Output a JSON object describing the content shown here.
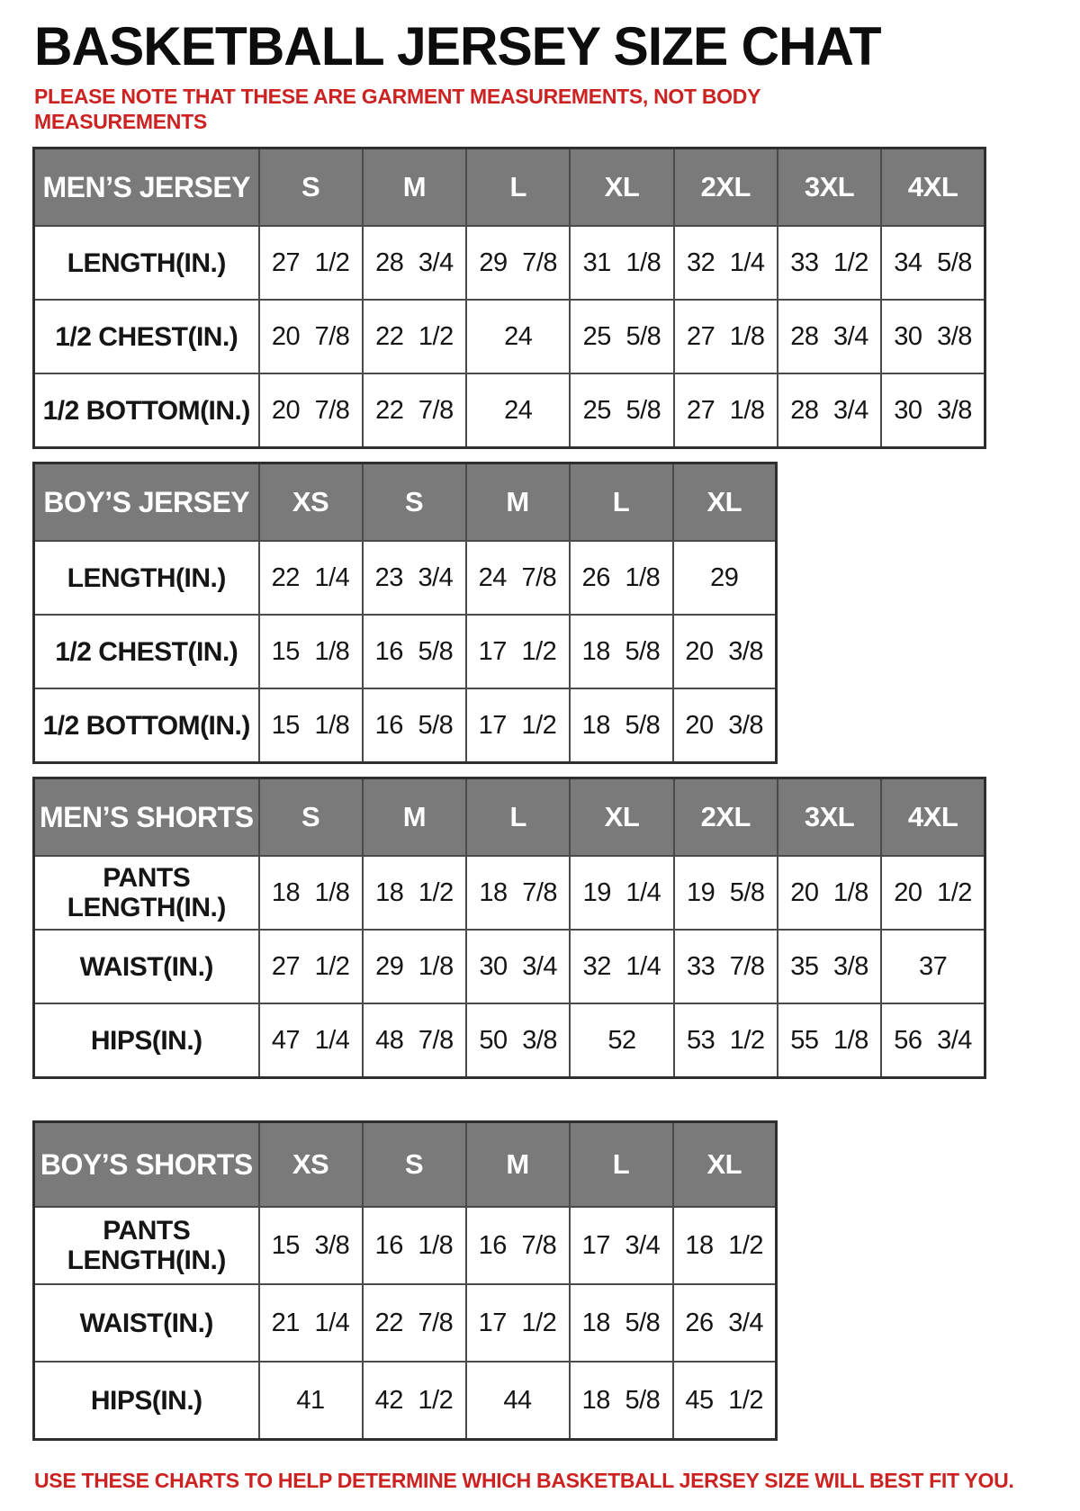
{
  "page": {
    "title": "BASKETBALL JERSEY SIZE CHAT",
    "note_top": "PLEASE NOTE THAT THESE ARE GARMENT MEASUREMENTS, NOT BODY MEASUREMENTS",
    "note_bottom": "USE THESE CHARTS TO HELP DETERMINE WHICH BASKETBALL JERSEY SIZE WILL BEST FIT YOU."
  },
  "colors": {
    "header_bg": "#7a7a7a",
    "header_text": "#ffffff",
    "note_red": "#cc2222",
    "border": "#4a4a4a",
    "title_text": "#0d0d0d"
  },
  "tables": [
    {
      "id": "mens-jersey",
      "header": [
        "MEN’S JERSEY",
        "S",
        "M",
        "L",
        "XL",
        "2XL",
        "3XL",
        "4XL"
      ],
      "rows": [
        {
          "label": "LENGTH(IN.)",
          "values": [
            "27 1/2",
            "28 3/4",
            "29 7/8",
            "31 1/8",
            "32 1/4",
            "33 1/2",
            "34 5/8"
          ]
        },
        {
          "label": "1/2 CHEST(IN.)",
          "values": [
            "20 7/8",
            "22 1/2",
            "24",
            "25 5/8",
            "27 1/8",
            "28 3/4",
            "30 3/8"
          ]
        },
        {
          "label": "1/2 BOTTOM(IN.)",
          "values": [
            "20 7/8",
            "22 7/8",
            "24",
            "25 5/8",
            "27 1/8",
            "28 3/4",
            "30 3/8"
          ]
        }
      ]
    },
    {
      "id": "boys-jersey",
      "header": [
        "BOY’S JERSEY",
        "XS",
        "S",
        "M",
        "L",
        "XL"
      ],
      "rows": [
        {
          "label": "LENGTH(IN.)",
          "values": [
            "22 1/4",
            "23 3/4",
            "24 7/8",
            "26 1/8",
            "29"
          ]
        },
        {
          "label": "1/2 CHEST(IN.)",
          "values": [
            "15 1/8",
            "16 5/8",
            "17 1/2",
            "18 5/8",
            "20 3/8"
          ]
        },
        {
          "label": "1/2 BOTTOM(IN.)",
          "values": [
            "15 1/8",
            "16 5/8",
            "17 1/2",
            "18 5/8",
            "20 3/8"
          ]
        }
      ]
    },
    {
      "id": "mens-shorts",
      "header": [
        "MEN’S SHORTS",
        "S",
        "M",
        "L",
        "XL",
        "2XL",
        "3XL",
        "4XL"
      ],
      "rows": [
        {
          "label": "PANTS LENGTH(IN.)",
          "values": [
            "18 1/8",
            "18 1/2",
            "18 7/8",
            "19 1/4",
            "19 5/8",
            "20 1/8",
            "20 1/2"
          ]
        },
        {
          "label": "WAIST(IN.)",
          "values": [
            "27 1/2",
            "29 1/8",
            "30 3/4",
            "32 1/4",
            "33 7/8",
            "35 3/8",
            "37"
          ]
        },
        {
          "label": "HIPS(IN.)",
          "values": [
            "47 1/4",
            "48 7/8",
            "50 3/8",
            "52",
            "53 1/2",
            "55 1/8",
            "56 3/4"
          ]
        }
      ]
    },
    {
      "id": "boys-shorts",
      "header": [
        "BOY’S SHORTS",
        "XS",
        "S",
        "M",
        "L",
        "XL"
      ],
      "rows": [
        {
          "label": "PANTS LENGTH(IN.)",
          "values": [
            "15 3/8",
            "16 1/8",
            "16 7/8",
            "17 3/4",
            "18 1/2"
          ]
        },
        {
          "label": "WAIST(IN.)",
          "values": [
            "21 1/4",
            "22 7/8",
            "17 1/2",
            "18 5/8",
            "26 3/4"
          ]
        },
        {
          "label": "HIPS(IN.)",
          "values": [
            "41",
            "42 1/2",
            "44",
            "18 5/8",
            "45 1/2"
          ]
        }
      ]
    }
  ]
}
